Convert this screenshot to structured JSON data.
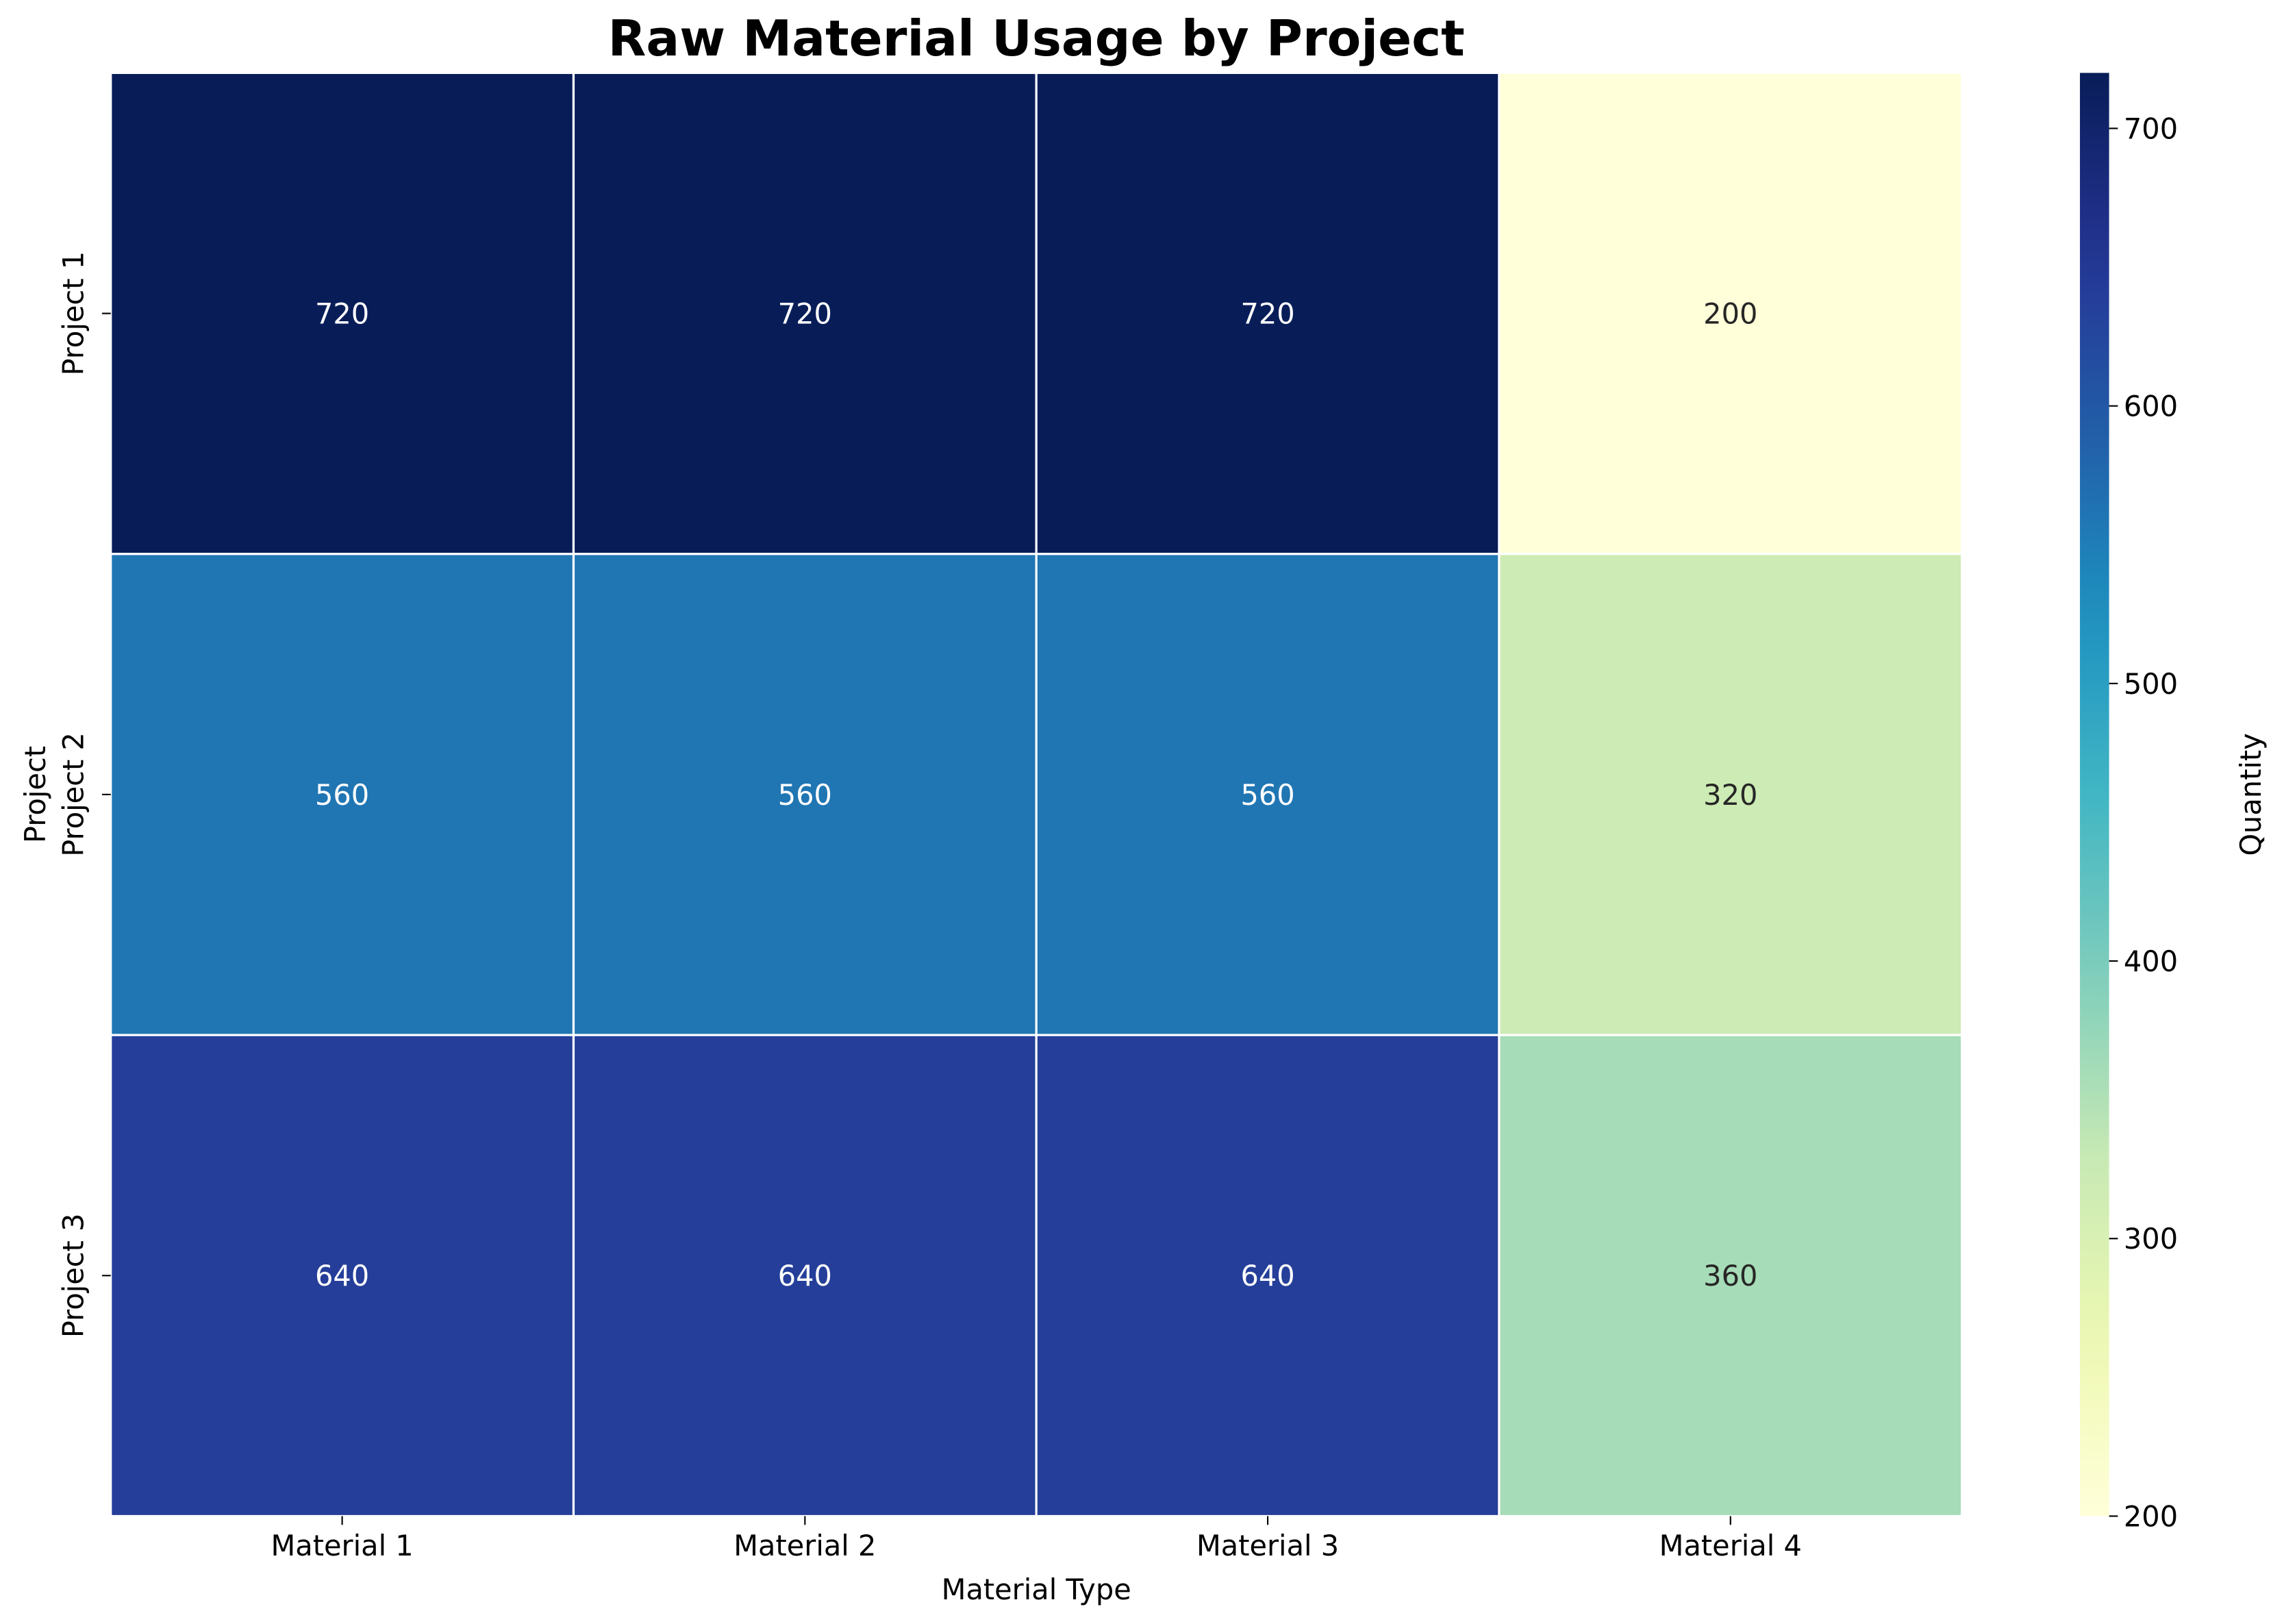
{
  "chart_data": {
    "type": "heatmap",
    "title": "Raw Material Usage by Project",
    "xlabel": "Material Type",
    "ylabel": "Project",
    "x_categories": [
      "Material 1",
      "Material 2",
      "Material 3",
      "Material 4"
    ],
    "y_categories": [
      "Project 1",
      "Project 2",
      "Project 3"
    ],
    "values": [
      [
        720,
        720,
        720,
        200
      ],
      [
        560,
        560,
        560,
        320
      ],
      [
        640,
        640,
        640,
        360
      ]
    ],
    "colorbar": {
      "label": "Quantity",
      "range": [
        200,
        720
      ],
      "ticks": [
        200,
        300,
        400,
        500,
        600,
        700
      ],
      "colormap": "YlGnBu"
    },
    "annotations": true,
    "grid": false
  }
}
